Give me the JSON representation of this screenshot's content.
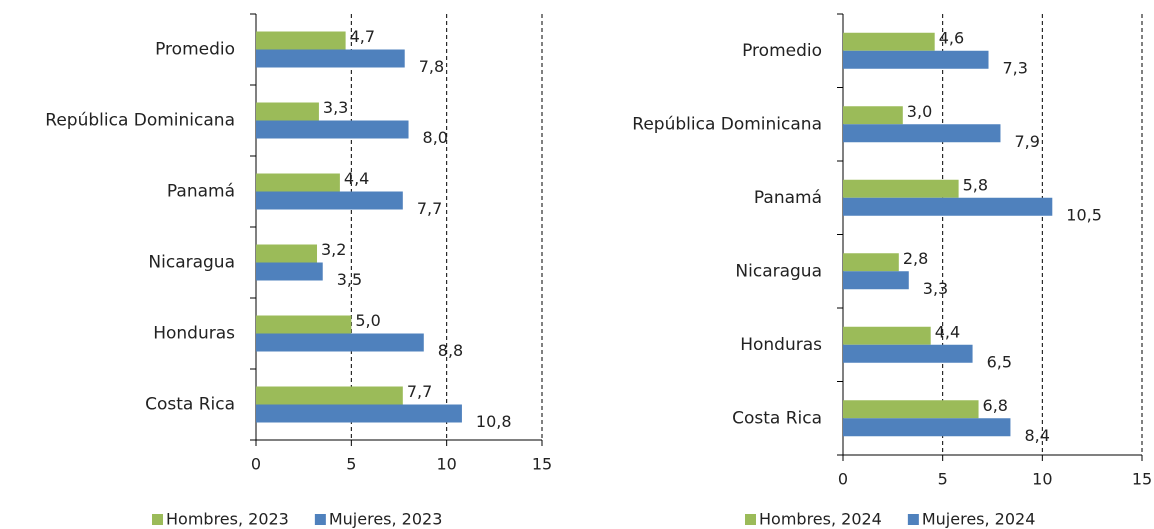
{
  "chart_data": [
    {
      "type": "bar",
      "orientation": "horizontal",
      "categories": [
        "Promedio",
        "República Dominicana",
        "Panamá",
        "Nicaragua",
        "Honduras",
        "Costa Rica"
      ],
      "series": [
        {
          "name": "Hombres, 2023",
          "color": "#9bbb59",
          "values": [
            4.7,
            3.3,
            4.4,
            3.2,
            5.0,
            7.7
          ],
          "value_labels": [
            "4,7",
            "3,3",
            "4,4",
            "3,2",
            "5,0",
            "7,7"
          ]
        },
        {
          "name": "Mujeres, 2023",
          "color": "#4f81bd",
          "values": [
            7.8,
            8.0,
            7.7,
            3.5,
            8.8,
            10.8
          ],
          "value_labels": [
            "7,8",
            "8,0",
            "7,7",
            "3,5",
            "8,8",
            "10,8"
          ]
        }
      ],
      "xlim": [
        0,
        15
      ],
      "xticks": [
        0,
        5,
        10,
        15
      ],
      "grid": true,
      "legend": "bottom"
    },
    {
      "type": "bar",
      "orientation": "horizontal",
      "categories": [
        "Promedio",
        "República Dominicana",
        "Panamá",
        "Nicaragua",
        "Honduras",
        "Costa Rica"
      ],
      "series": [
        {
          "name": "Hombres, 2024",
          "color": "#9bbb59",
          "values": [
            4.6,
            3.0,
            5.8,
            2.8,
            4.4,
            6.8
          ],
          "value_labels": [
            "4,6",
            "3,0",
            "5,8",
            "2,8",
            "4,4",
            "6,8"
          ]
        },
        {
          "name": "Mujeres, 2024",
          "color": "#4f81bd",
          "values": [
            7.3,
            7.9,
            10.5,
            3.3,
            6.5,
            8.4
          ],
          "value_labels": [
            "7,3",
            "7,9",
            "10,5",
            "3,3",
            "6,5",
            "8,4"
          ]
        }
      ],
      "xlim": [
        0,
        15
      ],
      "xticks": [
        0,
        5,
        10,
        15
      ],
      "grid": true,
      "legend": "bottom"
    }
  ]
}
